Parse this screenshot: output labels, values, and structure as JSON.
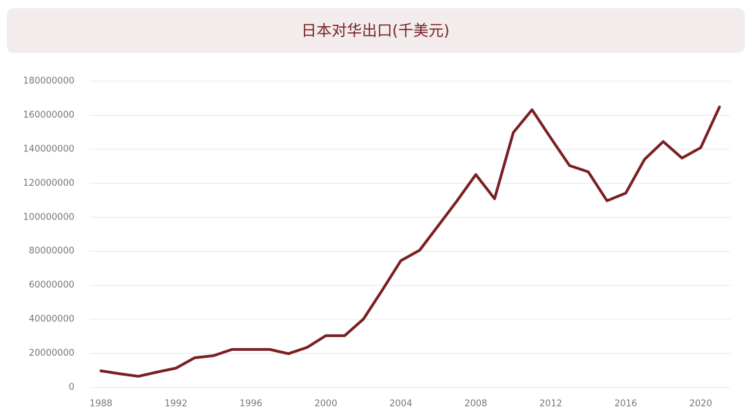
{
  "chart_data": {
    "type": "line",
    "title": "日本对华出口(千美元)",
    "x": [
      1988,
      1989,
      1990,
      1991,
      1992,
      1993,
      1994,
      1995,
      1996,
      1997,
      1998,
      1999,
      2000,
      2001,
      2002,
      2003,
      2004,
      2005,
      2006,
      2007,
      2008,
      2009,
      2010,
      2011,
      2012,
      2013,
      2014,
      2015,
      2016,
      2017,
      2018,
      2019,
      2020,
      2021
    ],
    "series": [
      {
        "color": "#7a1f22",
        "values": [
          9700000,
          8000000,
          6500000,
          9000000,
          11300000,
          17400000,
          18600000,
          22300000,
          22300000,
          22300000,
          19800000,
          23500000,
          30400000,
          30400000,
          40100000,
          57000000,
          74500000,
          80600000,
          95100000,
          109700000,
          125100000,
          110900000,
          149800000,
          163200000,
          146600000,
          130400000,
          126700000,
          109700000,
          114200000,
          134000000,
          144500000,
          134800000,
          140900000,
          164800000
        ]
      }
    ],
    "xlim": [
      1987.5,
      2021.5
    ],
    "xticks": [
      1988,
      1992,
      1996,
      2000,
      2004,
      2008,
      2012,
      2016,
      2020
    ],
    "ylim": [
      0,
      180000000
    ],
    "yticks": [
      0,
      20000000,
      40000000,
      60000000,
      80000000,
      100000000,
      120000000,
      140000000,
      160000000,
      180000000
    ],
    "grid": true
  }
}
